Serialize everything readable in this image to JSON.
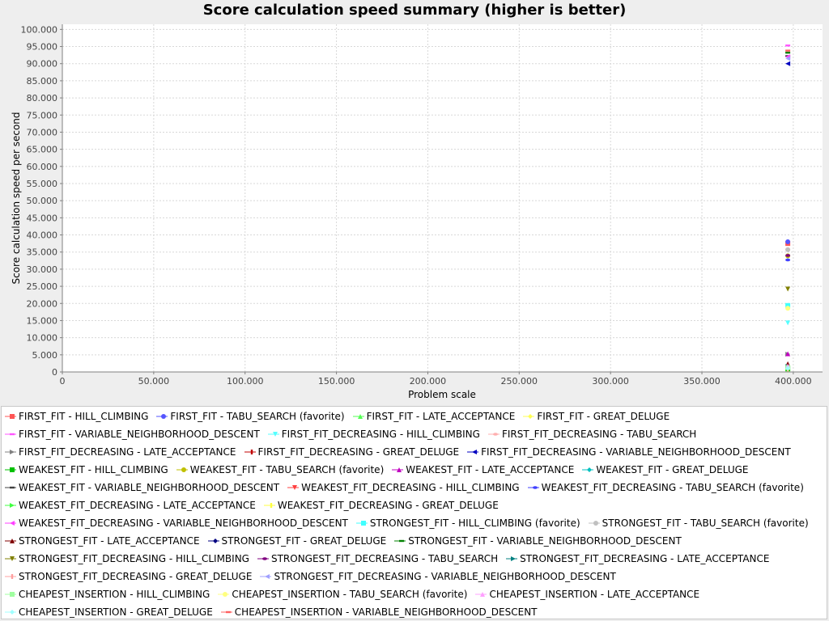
{
  "chart_data": {
    "type": "scatter",
    "title": "Score calculation speed summary (higher is better)",
    "xlabel": "Problem scale",
    "ylabel": "Score calculation speed per second",
    "xlim": [
      0,
      416000
    ],
    "ylim": [
      0,
      101500
    ],
    "x_ticks": [
      "0",
      "50.000",
      "100.000",
      "150.000",
      "200.000",
      "250.000",
      "300.000",
      "350.000",
      "400.000"
    ],
    "x_tick_values": [
      0,
      50000,
      100000,
      150000,
      200000,
      250000,
      300000,
      350000,
      400000
    ],
    "y_ticks": [
      "0",
      "5.000",
      "10.000",
      "15.000",
      "20.000",
      "25.000",
      "30.000",
      "35.000",
      "40.000",
      "45.000",
      "50.000",
      "55.000",
      "60.000",
      "65.000",
      "70.000",
      "75.000",
      "80.000",
      "85.000",
      "90.000",
      "95.000",
      "100.000"
    ],
    "y_tick_values": [
      0,
      5000,
      10000,
      15000,
      20000,
      25000,
      30000,
      35000,
      40000,
      45000,
      50000,
      55000,
      60000,
      65000,
      70000,
      75000,
      80000,
      85000,
      90000,
      95000,
      100000
    ],
    "grid": true,
    "legend_position": "bottom",
    "series": [
      {
        "name": "FIRST_FIT - HILL_CLIMBING",
        "color": "#ff5555",
        "marker": "square",
        "x": [
          397000
        ],
        "y": [
          37500
        ]
      },
      {
        "name": "FIRST_FIT - TABU_SEARCH (favorite)",
        "color": "#5555ff",
        "marker": "circle",
        "x": [
          397000
        ],
        "y": [
          38000
        ]
      },
      {
        "name": "FIRST_FIT - LATE_ACCEPTANCE",
        "color": "#55ff55",
        "marker": "triangle-up",
        "x": [
          397000
        ],
        "y": [
          1100
        ]
      },
      {
        "name": "FIRST_FIT - GREAT_DELUGE",
        "color": "#ffff55",
        "marker": "diamond",
        "x": [
          397000
        ],
        "y": [
          800
        ]
      },
      {
        "name": "FIRST_FIT - VARIABLE_NEIGHBORHOOD_DESCENT",
        "color": "#ff55ff",
        "marker": "rect-h",
        "x": [
          397000
        ],
        "y": [
          95300
        ]
      },
      {
        "name": "FIRST_FIT_DECREASING - HILL_CLIMBING",
        "color": "#55ffff",
        "marker": "triangle-down",
        "x": [
          397000
        ],
        "y": [
          14300
        ]
      },
      {
        "name": "FIRST_FIT_DECREASING - TABU_SEARCH",
        "color": "#ffafaf",
        "marker": "ellipse",
        "x": [
          397000
        ],
        "y": [
          35800
        ]
      },
      {
        "name": "FIRST_FIT_DECREASING - LATE_ACCEPTANCE",
        "color": "#808080",
        "marker": "triangle-right",
        "x": [
          397000
        ],
        "y": [
          5200
        ]
      },
      {
        "name": "FIRST_FIT_DECREASING - GREAT_DELUGE",
        "color": "#c00000",
        "marker": "rect-v",
        "x": [
          397000
        ],
        "y": [
          1300
        ]
      },
      {
        "name": "FIRST_FIT_DECREASING - VARIABLE_NEIGHBORHOOD_DESCENT",
        "color": "#0000c0",
        "marker": "triangle-left",
        "x": [
          397000
        ],
        "y": [
          90000
        ]
      },
      {
        "name": "WEAKEST_FIT - HILL_CLIMBING",
        "color": "#00c000",
        "marker": "square",
        "x": [
          397000
        ],
        "y": [
          900
        ]
      },
      {
        "name": "WEAKEST_FIT - TABU_SEARCH (favorite)",
        "color": "#c0c000",
        "marker": "circle",
        "x": [
          397000
        ],
        "y": [
          33900
        ]
      },
      {
        "name": "WEAKEST_FIT - LATE_ACCEPTANCE",
        "color": "#c000c0",
        "marker": "triangle-up",
        "x": [
          397000
        ],
        "y": [
          5300
        ]
      },
      {
        "name": "WEAKEST_FIT - GREAT_DELUGE",
        "color": "#00c0c0",
        "marker": "diamond",
        "x": [
          397000
        ],
        "y": [
          1000
        ]
      },
      {
        "name": "WEAKEST_FIT - VARIABLE_NEIGHBORHOOD_DESCENT",
        "color": "#404040",
        "marker": "rect-h",
        "x": [
          397000
        ],
        "y": [
          92200
        ]
      },
      {
        "name": "WEAKEST_FIT_DECREASING - HILL_CLIMBING",
        "color": "#ff4040",
        "marker": "triangle-down",
        "x": [
          397000
        ],
        "y": [
          1200
        ]
      },
      {
        "name": "WEAKEST_FIT_DECREASING - TABU_SEARCH (favorite)",
        "color": "#4040ff",
        "marker": "ellipse",
        "x": [
          397000
        ],
        "y": [
          32700
        ]
      },
      {
        "name": "WEAKEST_FIT_DECREASING - LATE_ACCEPTANCE",
        "color": "#40ff40",
        "marker": "triangle-right",
        "x": [
          397000
        ],
        "y": [
          1100
        ]
      },
      {
        "name": "WEAKEST_FIT_DECREASING - GREAT_DELUGE",
        "color": "#ffff40",
        "marker": "rect-v",
        "x": [
          397000
        ],
        "y": [
          900
        ]
      },
      {
        "name": "WEAKEST_FIT_DECREASING - VARIABLE_NEIGHBORHOOD_DESCENT",
        "color": "#ff40ff",
        "marker": "triangle-left",
        "x": [
          397000
        ],
        "y": [
          92000
        ]
      },
      {
        "name": "STRONGEST_FIT - HILL_CLIMBING (favorite)",
        "color": "#40ffff",
        "marker": "square",
        "x": [
          397000
        ],
        "y": [
          19400
        ]
      },
      {
        "name": "STRONGEST_FIT - TABU_SEARCH (favorite)",
        "color": "#c0c0c0",
        "marker": "circle",
        "x": [
          397000
        ],
        "y": [
          35700
        ]
      },
      {
        "name": "STRONGEST_FIT - LATE_ACCEPTANCE",
        "color": "#800000",
        "marker": "triangle-up",
        "x": [
          397000
        ],
        "y": [
          2400
        ]
      },
      {
        "name": "STRONGEST_FIT - GREAT_DELUGE",
        "color": "#000080",
        "marker": "diamond",
        "x": [
          397000
        ],
        "y": [
          1500
        ]
      },
      {
        "name": "STRONGEST_FIT - VARIABLE_NEIGHBORHOOD_DESCENT",
        "color": "#008000",
        "marker": "rect-h",
        "x": [
          397000
        ],
        "y": [
          93200
        ]
      },
      {
        "name": "STRONGEST_FIT_DECREASING - HILL_CLIMBING",
        "color": "#808000",
        "marker": "triangle-down",
        "x": [
          397000
        ],
        "y": [
          24200
        ]
      },
      {
        "name": "STRONGEST_FIT_DECREASING - TABU_SEARCH",
        "color": "#800080",
        "marker": "ellipse",
        "x": [
          397000
        ],
        "y": [
          34000
        ]
      },
      {
        "name": "STRONGEST_FIT_DECREASING - LATE_ACCEPTANCE",
        "color": "#008080",
        "marker": "triangle-right",
        "x": [
          397000
        ],
        "y": [
          1600
        ]
      },
      {
        "name": "STRONGEST_FIT_DECREASING - GREAT_DELUGE",
        "color": "#ffa0a0",
        "marker": "rect-v",
        "x": [
          397000
        ],
        "y": [
          1000
        ]
      },
      {
        "name": "STRONGEST_FIT_DECREASING - VARIABLE_NEIGHBORHOOD_DESCENT",
        "color": "#a0a0ff",
        "marker": "triangle-left",
        "x": [
          397000
        ],
        "y": [
          91500
        ]
      },
      {
        "name": "CHEAPEST_INSERTION - HILL_CLIMBING",
        "color": "#a0ffa0",
        "marker": "square",
        "x": [
          397000
        ],
        "y": [
          1300
        ]
      },
      {
        "name": "CHEAPEST_INSERTION - TABU_SEARCH (favorite)",
        "color": "#ffff80",
        "marker": "circle",
        "x": [
          397000
        ],
        "y": [
          18600
        ]
      },
      {
        "name": "CHEAPEST_INSERTION - LATE_ACCEPTANCE",
        "color": "#ffa0ff",
        "marker": "triangle-up",
        "x": [
          397000
        ],
        "y": [
          1700
        ]
      },
      {
        "name": "CHEAPEST_INSERTION - GREAT_DELUGE",
        "color": "#a0ffff",
        "marker": "diamond",
        "x": [
          397000
        ],
        "y": [
          1100
        ]
      },
      {
        "name": "CHEAPEST_INSERTION - VARIABLE_NEIGHBORHOOD_DESCENT",
        "color": "#ff6060",
        "marker": "rect-h",
        "x": [
          397000
        ],
        "y": [
          93800
        ]
      }
    ]
  }
}
